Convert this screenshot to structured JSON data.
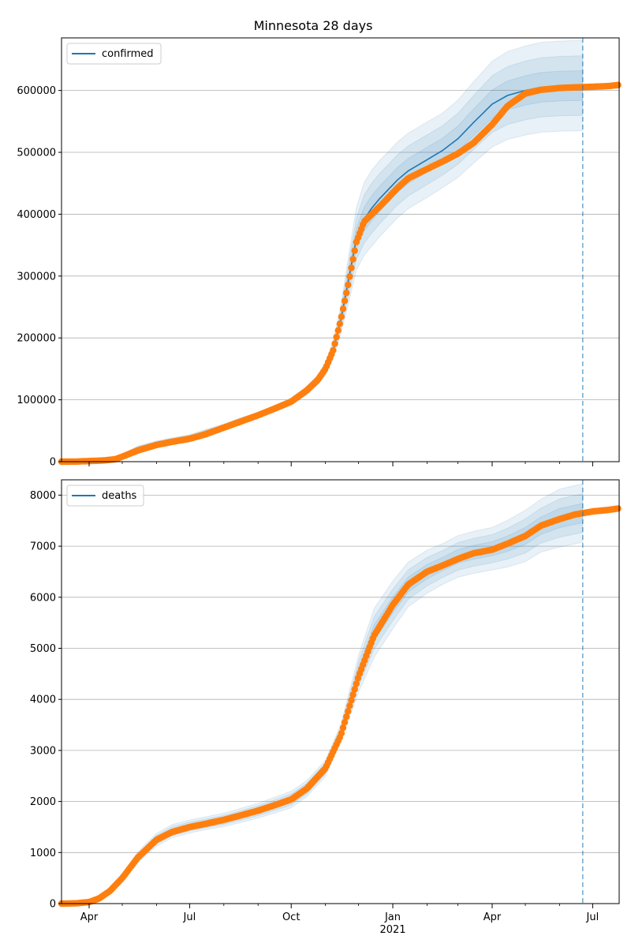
{
  "chart_data": [
    {
      "type": "line",
      "title": "Minnesota 28 days",
      "legend": {
        "label": "confirmed",
        "placement": "top-left"
      },
      "grid": "horizontal",
      "ylim": [
        0,
        685000
      ],
      "yticks": [
        0,
        100000,
        200000,
        300000,
        400000,
        500000,
        600000
      ],
      "ytick_labels": [
        "0",
        "100000",
        "200000",
        "300000",
        "400000",
        "500000",
        "600000"
      ],
      "forecast_start": "2021-06-22",
      "model_dates": [
        "2020-03-07",
        "2020-04-01",
        "2020-04-15",
        "2020-05-01",
        "2020-05-15",
        "2020-06-01",
        "2020-06-15",
        "2020-07-01",
        "2020-07-15",
        "2020-08-01",
        "2020-08-15",
        "2020-09-01",
        "2020-09-15",
        "2020-10-01",
        "2020-10-15",
        "2020-10-25",
        "2020-11-01",
        "2020-11-08",
        "2020-11-15",
        "2020-11-22",
        "2020-11-29",
        "2020-12-06",
        "2020-12-13",
        "2020-12-20",
        "2020-12-27",
        "2021-01-05",
        "2021-01-15",
        "2021-02-01",
        "2021-02-15",
        "2021-03-01",
        "2021-03-15",
        "2021-04-01",
        "2021-04-15",
        "2021-05-01",
        "2021-05-15",
        "2021-06-01",
        "2021-06-22"
      ],
      "model_values": [
        0,
        1500,
        3500,
        10000,
        22000,
        30000,
        35000,
        40000,
        48000,
        57000,
        66000,
        75000,
        85000,
        97000,
        115000,
        132000,
        150000,
        180000,
        230000,
        295000,
        360000,
        392000,
        410000,
        425000,
        438000,
        455000,
        470000,
        488000,
        503000,
        522000,
        548000,
        578000,
        592000,
        600000,
        605000,
        607000,
        608000
      ],
      "band_rel_95": [
        0,
        0.3,
        0.25,
        0.2,
        0.15,
        0.12,
        0.1,
        0.09,
        0.08,
        0.07,
        0.065,
        0.06,
        0.06,
        0.06,
        0.06,
        0.06,
        0.07,
        0.08,
        0.1,
        0.13,
        0.14,
        0.15,
        0.15,
        0.145,
        0.14,
        0.135,
        0.13,
        0.125,
        0.12,
        0.12,
        0.12,
        0.12,
        0.12,
        0.12,
        0.12,
        0.12,
        0.12
      ],
      "observed_dates": [
        "2020-03-07",
        "2020-03-20",
        "2020-04-01",
        "2020-04-15",
        "2020-04-25",
        "2020-05-01",
        "2020-05-15",
        "2020-06-01",
        "2020-06-15",
        "2020-07-01",
        "2020-07-15",
        "2020-08-01",
        "2020-08-15",
        "2020-09-01",
        "2020-09-15",
        "2020-10-01",
        "2020-10-15",
        "2020-10-25",
        "2020-11-01",
        "2020-11-08",
        "2020-11-15",
        "2020-11-22",
        "2020-11-29",
        "2020-12-06",
        "2020-12-13",
        "2020-12-20",
        "2020-12-27",
        "2021-01-05",
        "2021-01-15",
        "2021-02-01",
        "2021-02-15",
        "2021-03-01",
        "2021-03-15",
        "2021-04-01",
        "2021-04-15",
        "2021-05-01",
        "2021-05-15",
        "2021-06-01",
        "2021-06-15",
        "2021-07-01",
        "2021-07-15",
        "2021-07-25"
      ],
      "observed_values": [
        0,
        100,
        1000,
        2000,
        4000,
        8000,
        18000,
        27000,
        32000,
        37000,
        44000,
        55000,
        64000,
        75000,
        85000,
        97000,
        115000,
        132000,
        150000,
        180000,
        230000,
        290000,
        355000,
        388000,
        400000,
        412000,
        425000,
        442000,
        458000,
        473000,
        485000,
        498000,
        515000,
        545000,
        575000,
        595000,
        601000,
        604000,
        605000,
        606000,
        607000,
        609000
      ]
    },
    {
      "type": "line",
      "title": "",
      "legend": {
        "label": "deaths",
        "placement": "top-left"
      },
      "grid": "horizontal",
      "ylim": [
        0,
        8300
      ],
      "yticks": [
        0,
        1000,
        2000,
        3000,
        4000,
        5000,
        6000,
        7000,
        8000
      ],
      "ytick_labels": [
        "0",
        "1000",
        "2000",
        "3000",
        "4000",
        "5000",
        "6000",
        "7000",
        "8000"
      ],
      "xticks_major": [
        "2020-04-01",
        "2020-07-01",
        "2020-10-01",
        "2021-01-01",
        "2021-04-01",
        "2021-07-01"
      ],
      "xtick_labels": [
        "Apr",
        "Jul",
        "Oct",
        "Jan",
        "Apr",
        "Jul"
      ],
      "xticks_minor": [
        "2020-05-01",
        "2020-06-01",
        "2020-08-01",
        "2020-09-01",
        "2020-11-01",
        "2020-12-01",
        "2021-02-01",
        "2021-03-01",
        "2021-05-01",
        "2021-06-01"
      ],
      "year_label": "2021",
      "xlim": [
        "2020-03-07",
        "2021-07-25"
      ],
      "forecast_start": "2021-06-22",
      "model_dates": [
        "2020-03-07",
        "2020-04-01",
        "2020-04-15",
        "2020-05-01",
        "2020-05-15",
        "2020-06-01",
        "2020-06-15",
        "2020-07-01",
        "2020-07-15",
        "2020-08-01",
        "2020-08-15",
        "2020-09-01",
        "2020-09-15",
        "2020-10-01",
        "2020-10-15",
        "2020-11-01",
        "2020-11-15",
        "2020-12-01",
        "2020-12-15",
        "2021-01-01",
        "2021-01-15",
        "2021-02-01",
        "2021-02-15",
        "2021-03-01",
        "2021-03-15",
        "2021-04-01",
        "2021-04-15",
        "2021-05-01",
        "2021-05-15",
        "2021-06-01",
        "2021-06-22"
      ],
      "model_values": [
        0,
        30,
        180,
        500,
        900,
        1250,
        1420,
        1510,
        1570,
        1640,
        1720,
        1820,
        1920,
        2040,
        2250,
        2650,
        3350,
        4500,
        5300,
        5850,
        6250,
        6500,
        6650,
        6800,
        6880,
        6950,
        7050,
        7200,
        7400,
        7550,
        7650
      ],
      "band_rel_95": [
        0,
        0.3,
        0.2,
        0.15,
        0.12,
        0.1,
        0.09,
        0.085,
        0.08,
        0.08,
        0.08,
        0.08,
        0.08,
        0.08,
        0.07,
        0.06,
        0.05,
        0.08,
        0.09,
        0.08,
        0.07,
        0.065,
        0.06,
        0.06,
        0.06,
        0.06,
        0.065,
        0.07,
        0.07,
        0.075,
        0.075
      ],
      "observed_dates": [
        "2020-03-07",
        "2020-03-20",
        "2020-04-01",
        "2020-04-10",
        "2020-04-20",
        "2020-05-01",
        "2020-05-15",
        "2020-06-01",
        "2020-06-15",
        "2020-07-01",
        "2020-07-15",
        "2020-08-01",
        "2020-08-15",
        "2020-09-01",
        "2020-09-15",
        "2020-10-01",
        "2020-10-15",
        "2020-11-01",
        "2020-11-15",
        "2020-12-01",
        "2020-12-15",
        "2021-01-01",
        "2021-01-15",
        "2021-02-01",
        "2021-02-15",
        "2021-03-01",
        "2021-03-15",
        "2021-04-01",
        "2021-04-15",
        "2021-05-01",
        "2021-05-15",
        "2021-06-01",
        "2021-06-15",
        "2021-07-01",
        "2021-07-15",
        "2021-07-25"
      ],
      "observed_values": [
        0,
        5,
        30,
        100,
        250,
        500,
        900,
        1250,
        1400,
        1500,
        1560,
        1640,
        1720,
        1820,
        1920,
        2040,
        2250,
        2650,
        3300,
        4450,
        5250,
        5850,
        6250,
        6500,
        6620,
        6750,
        6860,
        6930,
        7050,
        7200,
        7400,
        7530,
        7620,
        7680,
        7710,
        7740
      ]
    }
  ]
}
